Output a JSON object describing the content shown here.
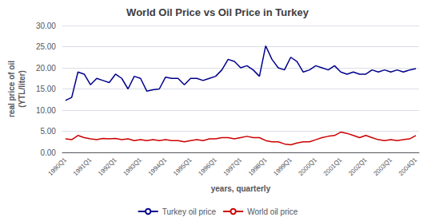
{
  "chart_data": {
    "type": "line",
    "title": "World Oil Price vs Oil Price in Turkey",
    "xlabel": "years, quarterly",
    "ylabel": "real price of oil\n(YTL/liter)",
    "categories": [
      "1990Q1",
      null,
      null,
      null,
      "1991Q1",
      null,
      null,
      null,
      "1992Q1",
      null,
      null,
      null,
      "1993Q1",
      null,
      null,
      null,
      "1994Q1",
      null,
      null,
      null,
      "1995Q1",
      null,
      null,
      null,
      "1996Q1",
      null,
      null,
      null,
      "1997Q1",
      null,
      null,
      null,
      "1998Q1",
      null,
      null,
      null,
      "1999Q1",
      null,
      null,
      null,
      "2000Q1",
      null,
      null,
      null,
      "2001Q1",
      null,
      null,
      null,
      "2002Q1",
      null,
      null,
      null,
      "2003Q1",
      null,
      null,
      null,
      "2004Q1"
    ],
    "series": [
      {
        "name": "Turkey oil price",
        "color": "#00008B",
        "values": [
          12.3,
          13.0,
          19.0,
          18.5,
          16.0,
          17.5,
          17.0,
          16.5,
          18.5,
          17.5,
          15.0,
          18.0,
          17.5,
          14.5,
          14.8,
          15.0,
          17.8,
          17.5,
          17.5,
          16.0,
          17.5,
          17.5,
          17.0,
          17.5,
          18.0,
          19.5,
          22.0,
          21.5,
          20.0,
          20.5,
          19.5,
          18.0,
          25.2,
          22.0,
          20.0,
          19.5,
          22.5,
          21.5,
          19.0,
          19.5,
          20.5,
          20.0,
          19.5,
          20.5,
          19.0,
          18.5,
          19.0,
          18.5,
          18.5,
          19.5,
          19.0,
          19.5,
          19.0,
          19.5,
          19.0,
          19.5,
          19.8
        ]
      },
      {
        "name": "World oil price",
        "color": "#CC0000",
        "values": [
          3.2,
          3.0,
          4.0,
          3.5,
          3.2,
          3.0,
          3.3,
          3.2,
          3.3,
          3.0,
          3.2,
          2.8,
          3.0,
          2.8,
          3.0,
          2.8,
          3.0,
          2.8,
          2.8,
          2.5,
          2.8,
          3.0,
          2.8,
          3.2,
          3.2,
          3.5,
          3.5,
          3.2,
          3.5,
          3.8,
          3.5,
          3.5,
          2.8,
          2.5,
          2.5,
          2.0,
          1.8,
          2.2,
          2.5,
          2.5,
          3.0,
          3.5,
          3.8,
          4.0,
          4.8,
          4.5,
          4.0,
          3.5,
          4.0,
          3.5,
          3.0,
          2.8,
          3.0,
          2.8,
          3.0,
          3.2,
          4.0
        ]
      }
    ],
    "ylim": [
      0,
      30
    ],
    "yticks": [
      {
        "value": 0,
        "label": "0.00"
      },
      {
        "value": 5,
        "label": "5.00"
      },
      {
        "value": 10,
        "label": "10.00"
      },
      {
        "value": 15,
        "label": "15.00"
      },
      {
        "value": 20,
        "label": "20.00"
      },
      {
        "value": 25,
        "label": "25.00"
      },
      {
        "value": 30,
        "label": "30.00"
      }
    ],
    "grid": true,
    "legend": "bottom"
  }
}
